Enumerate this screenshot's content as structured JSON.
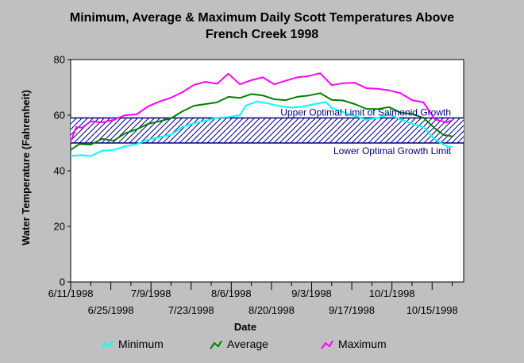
{
  "title_line1": "Minimum, Average & Maximum Daily Scott Temperatures Above",
  "title_line2": "French Creek 1998",
  "colors": {
    "background": "#c0c0c0",
    "plot": "#ffffff",
    "band_fill": "#000080",
    "minimum": "#00ffff",
    "average": "#008000",
    "maximum": "#ff00ff"
  },
  "chart_data": {
    "type": "line",
    "xlabel": "Date",
    "ylabel": "Water Temperature (Fahrenheit)",
    "xlim": [
      "1998-06-11",
      "1998-10-26"
    ],
    "ylim": [
      0,
      80
    ],
    "y_ticks": [
      0,
      20,
      40,
      60,
      80
    ],
    "x_ticks_row1": [
      "6/11/1998",
      "7/9/1998",
      "8/6/1998",
      "9/3/1998",
      "10/1/1998"
    ],
    "x_ticks_row2": [
      "6/25/1998",
      "7/23/1998",
      "8/20/1998",
      "9/17/1998",
      "10/15/1998"
    ],
    "optimal_band": {
      "upper": 59,
      "lower": 50,
      "upper_label": "Upper Optimal Limit of Salmonid Growth",
      "lower_label": "Lower Optimal Growth Limit"
    },
    "legend_position": "bottom",
    "series": [
      {
        "name": "Minimum",
        "color": "#00ffff",
        "points": [
          [
            "6/11",
            45.4
          ],
          [
            "6/15",
            45.6
          ],
          [
            "6/18",
            45.3
          ],
          [
            "6/22",
            47.2
          ],
          [
            "6/26",
            47.5
          ],
          [
            "6/30",
            48.8
          ],
          [
            "7/4",
            49.6
          ],
          [
            "7/8",
            51.2
          ],
          [
            "7/12",
            52.1
          ],
          [
            "7/16",
            53.0
          ],
          [
            "7/20",
            55.7
          ],
          [
            "7/24",
            57.1
          ],
          [
            "7/28",
            58.0
          ],
          [
            "8/1",
            59.1
          ],
          [
            "8/5",
            59.3
          ],
          [
            "8/9",
            60.0
          ],
          [
            "8/11",
            63.4
          ],
          [
            "8/15",
            64.9
          ],
          [
            "8/19",
            64.2
          ],
          [
            "8/23",
            63.2
          ],
          [
            "8/27",
            62.7
          ],
          [
            "8/31",
            63.1
          ],
          [
            "9/4",
            64.0
          ],
          [
            "9/8",
            64.7
          ],
          [
            "9/10",
            62.6
          ],
          [
            "9/14",
            61.1
          ],
          [
            "9/18",
            59.8
          ],
          [
            "9/22",
            58.3
          ],
          [
            "9/26",
            59.0
          ],
          [
            "9/30",
            60.3
          ],
          [
            "10/4",
            58.5
          ],
          [
            "10/8",
            56.9
          ],
          [
            "10/12",
            55.7
          ],
          [
            "10/16",
            51.2
          ],
          [
            "10/20",
            48.9
          ],
          [
            "10/22",
            48.5
          ]
        ]
      },
      {
        "name": "Average",
        "color": "#008000",
        "points": [
          [
            "6/11",
            47.5
          ],
          [
            "6/14",
            49.6
          ],
          [
            "6/18",
            49.4
          ],
          [
            "6/22",
            51.5
          ],
          [
            "6/26",
            50.8
          ],
          [
            "6/30",
            53.5
          ],
          [
            "7/4",
            54.9
          ],
          [
            "7/8",
            56.9
          ],
          [
            "7/12",
            57.8
          ],
          [
            "7/16",
            58.9
          ],
          [
            "7/20",
            61.4
          ],
          [
            "7/24",
            63.4
          ],
          [
            "7/28",
            64.0
          ],
          [
            "8/1",
            64.6
          ],
          [
            "8/5",
            66.6
          ],
          [
            "8/9",
            66.2
          ],
          [
            "8/13",
            67.6
          ],
          [
            "8/17",
            67.1
          ],
          [
            "8/21",
            65.7
          ],
          [
            "8/25",
            65.4
          ],
          [
            "8/29",
            66.6
          ],
          [
            "9/2",
            67.1
          ],
          [
            "9/6",
            67.9
          ],
          [
            "9/10",
            65.5
          ],
          [
            "9/14",
            65.3
          ],
          [
            "9/18",
            64.0
          ],
          [
            "9/22",
            62.3
          ],
          [
            "9/26",
            62.2
          ],
          [
            "9/30",
            62.9
          ],
          [
            "10/4",
            60.9
          ],
          [
            "10/8",
            60.4
          ],
          [
            "10/12",
            59.1
          ],
          [
            "10/16",
            55.2
          ],
          [
            "10/19",
            52.9
          ],
          [
            "10/22",
            52.4
          ]
        ]
      },
      {
        "name": "Maximum",
        "color": "#ff00ff",
        "points": [
          [
            "6/11",
            50.5
          ],
          [
            "6/13",
            55.7
          ],
          [
            "6/15",
            55.5
          ],
          [
            "6/18",
            57.8
          ],
          [
            "6/22",
            57.4
          ],
          [
            "6/26",
            58.3
          ],
          [
            "6/30",
            60.0
          ],
          [
            "7/4",
            60.3
          ],
          [
            "7/8",
            63.2
          ],
          [
            "7/12",
            64.9
          ],
          [
            "7/16",
            66.3
          ],
          [
            "7/20",
            68.3
          ],
          [
            "7/24",
            70.9
          ],
          [
            "7/28",
            72.0
          ],
          [
            "8/1",
            71.3
          ],
          [
            "8/5",
            74.9
          ],
          [
            "8/9",
            71.1
          ],
          [
            "8/13",
            72.6
          ],
          [
            "8/17",
            73.6
          ],
          [
            "8/21",
            71.1
          ],
          [
            "8/25",
            72.4
          ],
          [
            "8/29",
            73.6
          ],
          [
            "9/2",
            74.1
          ],
          [
            "9/6",
            75.1
          ],
          [
            "9/10",
            70.8
          ],
          [
            "9/14",
            71.5
          ],
          [
            "9/18",
            71.7
          ],
          [
            "9/22",
            69.7
          ],
          [
            "9/26",
            69.5
          ],
          [
            "9/30",
            68.9
          ],
          [
            "10/4",
            67.9
          ],
          [
            "10/8",
            65.4
          ],
          [
            "10/12",
            64.6
          ],
          [
            "10/16",
            58.5
          ],
          [
            "10/20",
            57.4
          ],
          [
            "10/22",
            58.1
          ]
        ]
      }
    ]
  }
}
